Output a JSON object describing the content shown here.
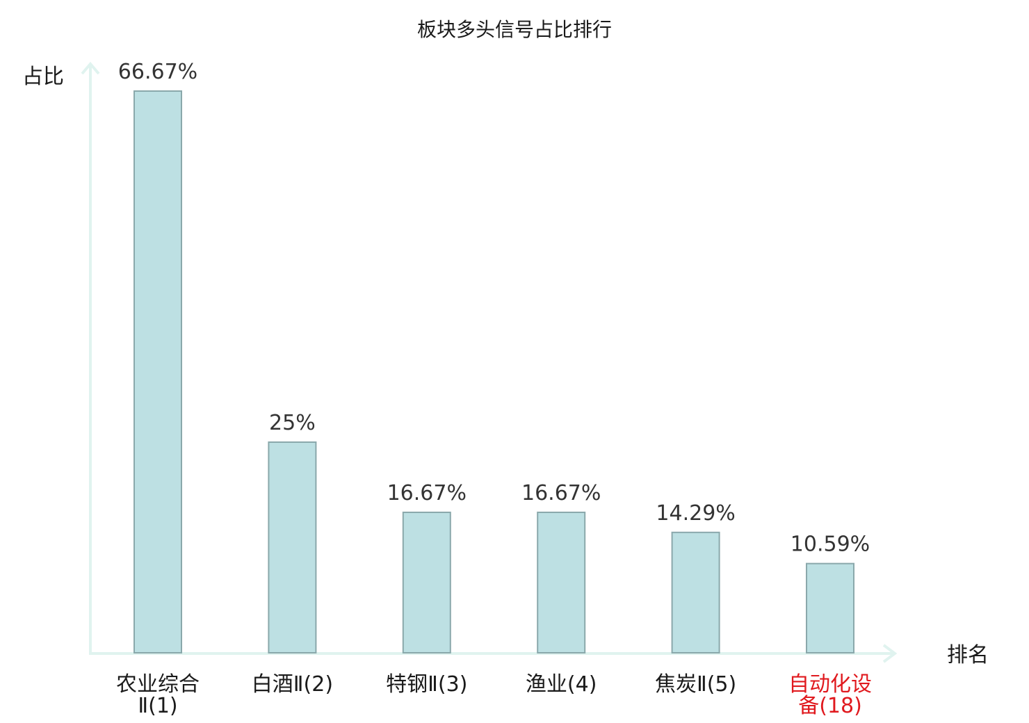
{
  "chart_data": {
    "type": "bar",
    "title": "板块多头信号占比排行",
    "ylabel": "占比",
    "xlabel": "排名",
    "categories": [
      {
        "name": "农业综合Ⅱ",
        "rank": "(1)",
        "lines": [
          "农业综合",
          "Ⅱ(1)"
        ]
      },
      {
        "name": "白酒Ⅱ",
        "rank": "(2)",
        "lines": [
          "白酒Ⅱ(2)"
        ]
      },
      {
        "name": "特钢Ⅱ",
        "rank": "(3)",
        "lines": [
          "特钢Ⅱ(3)"
        ]
      },
      {
        "name": "渔业",
        "rank": "(4)",
        "lines": [
          "渔业(4)"
        ]
      },
      {
        "name": "焦炭Ⅱ",
        "rank": "(5)",
        "lines": [
          "焦炭Ⅱ(5)"
        ]
      },
      {
        "name": "自动化设备",
        "rank": "(18)",
        "lines": [
          "自动化设",
          "备(18)"
        ],
        "highlight": true
      }
    ],
    "values": [
      66.67,
      25,
      16.67,
      16.67,
      14.29,
      10.59
    ],
    "value_labels": [
      "66.67%",
      "25%",
      "16.67%",
      "16.67%",
      "14.29%",
      "10.59%"
    ],
    "ylim": [
      0,
      66.67
    ],
    "grid": false,
    "legend": "none",
    "colors": {
      "bar_fill": "#bde0e3",
      "bar_stroke": "#8aa8ab",
      "axis": "#e0f3ef",
      "highlight_label": "#e0191e"
    }
  }
}
